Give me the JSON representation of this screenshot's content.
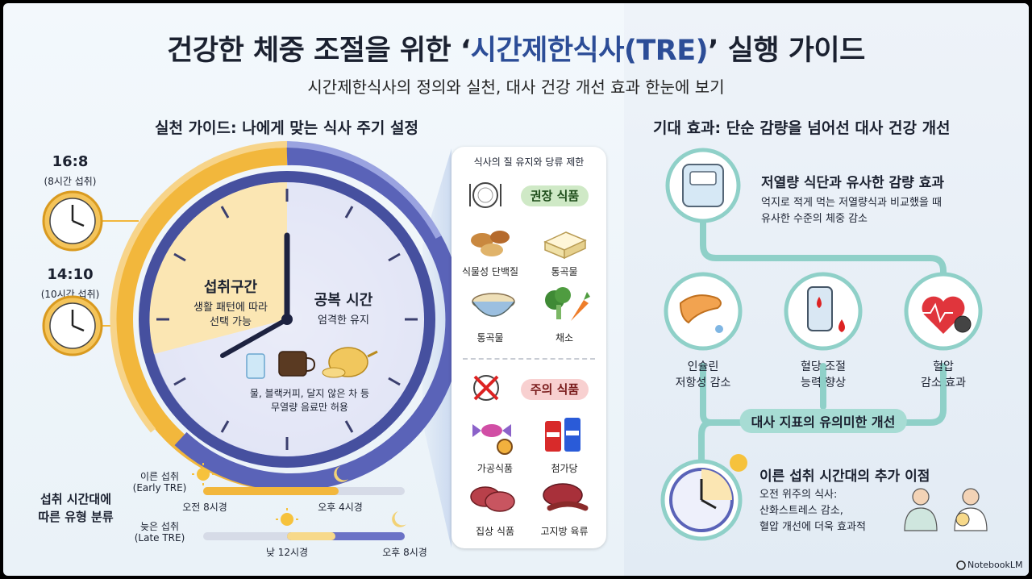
{
  "header": {
    "title_prefix": "건강한 체중 조절을 위한 ‘",
    "title_highlight": "시간제한식사(TRE)",
    "title_suffix": "’ 실행 가이드",
    "subtitle": "시간제한식사의 정의와 실천, 대사 건강 개선 효과 한눈에 보기"
  },
  "left": {
    "section_title": "실천 가이드: 나에게 맞는 식사 주기 설정",
    "schedules": [
      {
        "ratio": "16:8",
        "note": "(8시간 섭취)"
      },
      {
        "ratio": "14:10",
        "note": "(10시간 섭취)"
      }
    ],
    "clock": {
      "eating_title": "섭취구간",
      "eating_desc_1": "생활 패턴에 따라",
      "eating_desc_2": "선택 가능",
      "fasting_title": "공복 시간",
      "fasting_desc": "엄격한 유지",
      "drinks_note_1": "물, 블랙커피, 달지 않은 차 등",
      "drinks_note_2": "무열량 음료만 허용"
    },
    "type_title_1": "섭취 시간대에",
    "type_title_2": "따른 유형 분류",
    "early": {
      "label": "이른 섭취",
      "sub": "(Early TRE)",
      "start": "오전 8시경",
      "end": "오후 4시경"
    },
    "late": {
      "label": "늦은 섭취",
      "sub": "(Late TRE)",
      "start": "낮 12시경",
      "end": "오후 8시경"
    }
  },
  "food_card": {
    "title": "식사의 질 유지와 당류 제한",
    "recommended_pill": "권장 식품",
    "recommended": [
      "식물성 단백질",
      "통곡물",
      "통곡물",
      "채소"
    ],
    "caution_pill": "주의 식품",
    "caution": [
      "가공식품",
      "첨가당",
      "집상 식품",
      "고지방 육류"
    ]
  },
  "right": {
    "section_title": "기대 효과: 단순 감량을 넘어선 대사 건강 개선",
    "weight_title": "저열량 식단과 유사한 감량 효과",
    "weight_desc_1": "억지로 적게 먹는 저열량식과 비교했을 때",
    "weight_desc_2": "유사한 수준의 체중 감소",
    "benefits": [
      {
        "line1": "인슐린",
        "line2": "저항성 감소"
      },
      {
        "line1": "혈당 조절",
        "line2": "능력 향상"
      },
      {
        "line1": "혈압",
        "line2": "감소 효과"
      }
    ],
    "metrics_banner": "대사 지표의 유의미한 개선",
    "early_title": "이른 섭취 시간대의 추가 이점",
    "early_desc_1": "오전 위주의 식사:",
    "early_desc_2": "산화스트레스 감소,",
    "early_desc_3": "혈압 개선에 더욱 효과적"
  },
  "brand": "NotebookLM",
  "colors": {
    "accent_blue": "#2c4d97",
    "eating_gold": "#f2b73c",
    "fasting_purple": "#5a63b8",
    "path_teal": "#8fd0c8"
  }
}
